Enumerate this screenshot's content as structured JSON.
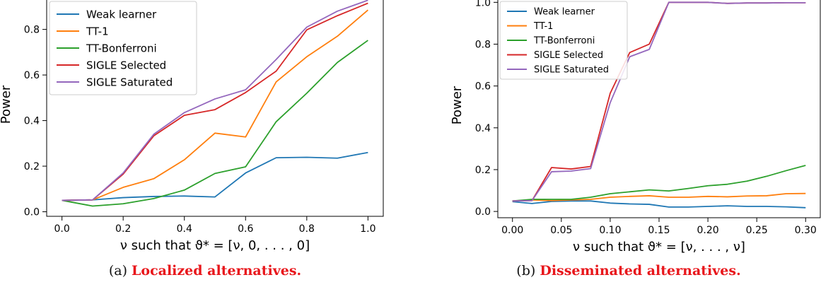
{
  "series_colors": [
    "#1f77b4",
    "#ff7f0e",
    "#2ca02c",
    "#d62728",
    "#9467bd"
  ],
  "chart_data": [
    {
      "type": "line",
      "caption_label": "(a)",
      "caption_title": "Localized alternatives.",
      "xlabel": "ν such that ϑ* = [ν, 0, . . . , 0]",
      "ylabel": "Power",
      "xlim": [
        -0.05,
        1.05
      ],
      "ylim": [
        -0.02,
        0.96
      ],
      "xticks": [
        0.0,
        0.2,
        0.4,
        0.6,
        0.8,
        1.0
      ],
      "xtick_labels": [
        "0.0",
        "0.2",
        "0.4",
        "0.6",
        "0.8",
        "1.0"
      ],
      "yticks": [
        0.0,
        0.2,
        0.4,
        0.6,
        0.8
      ],
      "ytick_labels": [
        "0.0",
        "0.2",
        "0.4",
        "0.6",
        "0.8"
      ],
      "grid": false,
      "legend_position": "top-left",
      "x": [
        0.0,
        0.1,
        0.2,
        0.3,
        0.4,
        0.5,
        0.6,
        0.7,
        0.8,
        0.9,
        1.0
      ],
      "series": [
        {
          "name": "Weak learner",
          "values": [
            0.05,
            0.052,
            0.062,
            0.067,
            0.069,
            0.065,
            0.17,
            0.237,
            0.239,
            0.235,
            0.26
          ]
        },
        {
          "name": "TT-1",
          "values": [
            0.05,
            0.052,
            0.107,
            0.145,
            0.228,
            0.345,
            0.328,
            0.57,
            0.68,
            0.77,
            0.885
          ]
        },
        {
          "name": "TT-Bonferroni",
          "values": [
            0.05,
            0.025,
            0.035,
            0.058,
            0.095,
            0.168,
            0.197,
            0.395,
            0.52,
            0.655,
            0.752
          ]
        },
        {
          "name": "SIGLE Selected",
          "values": [
            0.05,
            0.052,
            0.165,
            0.333,
            0.423,
            0.448,
            0.523,
            0.617,
            0.798,
            0.86,
            0.915
          ]
        },
        {
          "name": "SIGLE Saturated",
          "values": [
            0.05,
            0.052,
            0.17,
            0.34,
            0.435,
            0.495,
            0.535,
            0.668,
            0.81,
            0.88,
            0.928
          ]
        }
      ]
    },
    {
      "type": "line",
      "caption_label": "(b)",
      "caption_title": "Disseminated alternatives.",
      "xlabel": "ν such that ϑ* = [ν, . . . , ν]",
      "ylabel": "Power",
      "xlim": [
        -0.015,
        0.315
      ],
      "ylim": [
        -0.03,
        1.045
      ],
      "xticks": [
        0.0,
        0.05,
        0.1,
        0.15,
        0.2,
        0.25,
        0.3
      ],
      "xtick_labels": [
        "0.00",
        "0.05",
        "0.10",
        "0.15",
        "0.20",
        "0.25",
        "0.30"
      ],
      "yticks": [
        0.0,
        0.2,
        0.4,
        0.6,
        0.8,
        1.0
      ],
      "ytick_labels": [
        "0.0",
        "0.2",
        "0.4",
        "0.6",
        "0.8",
        "1.0"
      ],
      "grid": false,
      "legend_position": "top-left",
      "x": [
        0.0,
        0.02,
        0.04,
        0.06,
        0.08,
        0.1,
        0.12,
        0.14,
        0.16,
        0.18,
        0.2,
        0.22,
        0.24,
        0.26,
        0.28,
        0.3
      ],
      "series": [
        {
          "name": "Weak learner",
          "values": [
            0.047,
            0.038,
            0.048,
            0.05,
            0.05,
            0.04,
            0.036,
            0.034,
            0.021,
            0.021,
            0.024,
            0.027,
            0.024,
            0.024,
            0.022,
            0.018
          ]
        },
        {
          "name": "TT-1",
          "values": [
            0.05,
            0.055,
            0.052,
            0.055,
            0.058,
            0.068,
            0.072,
            0.075,
            0.068,
            0.068,
            0.072,
            0.07,
            0.074,
            0.075,
            0.085,
            0.086
          ]
        },
        {
          "name": "TT-Bonferroni",
          "values": [
            0.05,
            0.058,
            0.058,
            0.058,
            0.068,
            0.085,
            0.094,
            0.103,
            0.098,
            0.11,
            0.123,
            0.13,
            0.145,
            0.168,
            0.195,
            0.22
          ]
        },
        {
          "name": "SIGLE Selected",
          "values": [
            0.05,
            0.052,
            0.21,
            0.203,
            0.215,
            0.565,
            0.76,
            0.8,
            1.0,
            1.0,
            1.0,
            0.995,
            0.997,
            0.997,
            0.998,
            0.998
          ]
        },
        {
          "name": "SIGLE Saturated",
          "values": [
            0.05,
            0.052,
            0.19,
            0.193,
            0.205,
            0.52,
            0.74,
            0.775,
            1.0,
            1.0,
            1.0,
            0.995,
            0.997,
            0.997,
            0.998,
            0.998
          ]
        }
      ]
    }
  ]
}
